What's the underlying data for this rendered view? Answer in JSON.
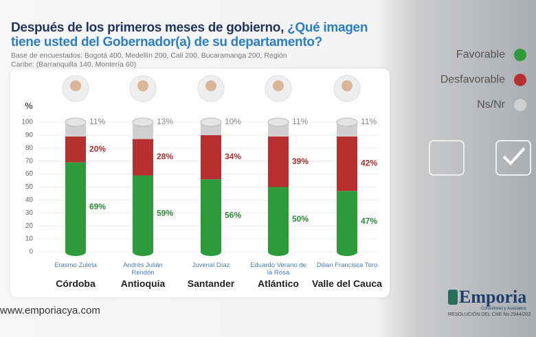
{
  "chart_data": {
    "type": "bar",
    "stacked": true,
    "title_lead": "Después de los primeros meses de gobierno, ",
    "title_question": "¿Qué imagen tiene usted del Gobernador(a) de su departamento?",
    "subtitle": "Base de encuestados: Bogotá 400, Medellín 200, Cali 200, Bucaramanga 200, Región Caribe: (Barranquilla 140, Montería 60)",
    "y_label": "%",
    "categories": [
      "Córdoba",
      "Antioquia",
      "Santander",
      "Atlántico",
      "Valle del Cauca"
    ],
    "persons": [
      "Erasmo Zuleta",
      "Andrés Julián Rendón",
      "Juvenal Díaz",
      "Eduardo Verano de la Rosa",
      "Dilian Francisca Toro"
    ],
    "series": [
      {
        "name": "Favorable",
        "color": "#2e9b3b",
        "label_color": "#2e8b38",
        "values": [
          69,
          59,
          56,
          50,
          47
        ],
        "value_labels": [
          "69%",
          "59%",
          "56%",
          "50%",
          "47%"
        ]
      },
      {
        "name": "Desfavorable",
        "color": "#b5302f",
        "label_color": "#b03232",
        "values": [
          20,
          28,
          34,
          39,
          42
        ],
        "value_labels": [
          "20%",
          "28%",
          "34%",
          "39%",
          "42%"
        ]
      },
      {
        "name": "Ns/Nr",
        "color": "#cfcfcf",
        "label_color": "#8a8a8a",
        "values": [
          11,
          13,
          10,
          11,
          11
        ],
        "value_labels": [
          "11%",
          "13%",
          "10%",
          "11%",
          "11%"
        ]
      }
    ],
    "ylim": [
      0,
      100
    ],
    "yticks": [
      0,
      10,
      20,
      30,
      40,
      50,
      60,
      70,
      80,
      90,
      100
    ],
    "grid": true,
    "legend": "right"
  },
  "footer": {
    "website": "www.emporiacya.com",
    "brand": "Emporia",
    "tagline": "Consultores y Asociados",
    "resolution": "RESOLUCIÓN DEL CNE No.2944/202"
  }
}
